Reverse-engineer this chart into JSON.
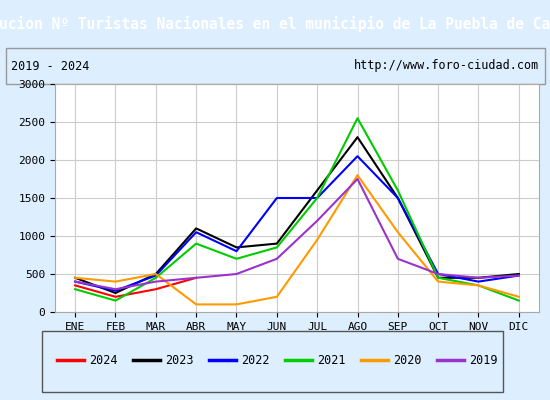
{
  "title": "Evolucion Nº Turistas Nacionales en el municipio de La Puebla de Castro",
  "subtitle_left": "2019 - 2024",
  "subtitle_right": "http://www.foro-ciudad.com",
  "months": [
    "ENE",
    "FEB",
    "MAR",
    "ABR",
    "MAY",
    "JUN",
    "JUL",
    "AGO",
    "SEP",
    "OCT",
    "NOV",
    "DIC"
  ],
  "series": {
    "2024": {
      "color": "#ff0000",
      "data": [
        350,
        200,
        300,
        450,
        null,
        null,
        null,
        null,
        null,
        null,
        null,
        null
      ]
    },
    "2023": {
      "color": "#000000",
      "data": [
        450,
        250,
        500,
        1100,
        850,
        900,
        1600,
        2300,
        1500,
        450,
        450,
        500
      ]
    },
    "2022": {
      "color": "#0000ff",
      "data": [
        400,
        280,
        480,
        1050,
        800,
        1500,
        1500,
        2050,
        1500,
        500,
        400,
        480
      ]
    },
    "2021": {
      "color": "#00cc00",
      "data": [
        300,
        150,
        450,
        900,
        700,
        850,
        1500,
        2550,
        1600,
        450,
        350,
        150
      ]
    },
    "2020": {
      "color": "#ff9900",
      "data": [
        450,
        400,
        500,
        100,
        100,
        200,
        950,
        1800,
        1050,
        400,
        350,
        200
      ]
    },
    "2019": {
      "color": "#9933cc",
      "data": [
        400,
        300,
        400,
        450,
        500,
        700,
        1200,
        1750,
        700,
        500,
        450,
        480
      ]
    }
  },
  "ylim": [
    0,
    3000
  ],
  "yticks": [
    0,
    500,
    1000,
    1500,
    2000,
    2500,
    3000
  ],
  "title_bg_color": "#4d94d9",
  "title_text_color": "#ffffff",
  "plot_bg_color": "#ffffff",
  "outer_bg_color": "#ddeeff",
  "grid_color": "#cccccc",
  "legend_order": [
    "2024",
    "2023",
    "2022",
    "2021",
    "2020",
    "2019"
  ]
}
